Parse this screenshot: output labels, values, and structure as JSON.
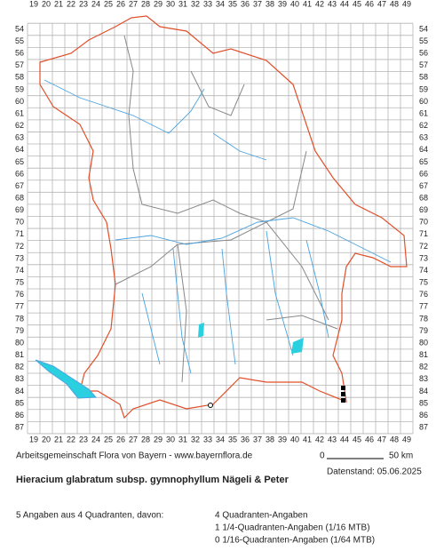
{
  "map": {
    "columns": [
      19,
      20,
      21,
      22,
      23,
      24,
      25,
      26,
      27,
      28,
      29,
      30,
      31,
      32,
      33,
      34,
      35,
      36,
      37,
      38,
      39,
      40,
      41,
      42,
      43,
      44,
      45,
      46,
      47,
      48,
      49
    ],
    "rows": [
      54,
      55,
      56,
      57,
      58,
      59,
      60,
      61,
      62,
      63,
      64,
      65,
      66,
      67,
      68,
      69,
      70,
      71,
      72,
      73,
      74,
      75,
      76,
      77,
      78,
      79,
      80,
      81,
      82,
      83,
      84,
      85,
      86,
      87
    ],
    "credit": "Arbeitsgemeinschaft Flora von Bayern - www.bayernflora.de",
    "scale_start": "0",
    "scale_end": "50 km",
    "date": "Datenstand: 05.06.2025",
    "title": "Hieracium glabratum subsp. gymnophyllum Nägeli & Peter",
    "summary": "5 Angaben aus 4 Quadranten, davon:",
    "counts": [
      "4 Quadranten-Angaben",
      "1 1/4-Quadranten-Angaben (1/16 MTB)",
      "0 1/16-Quadranten-Angaben (1/64 MTB)"
    ]
  }
}
